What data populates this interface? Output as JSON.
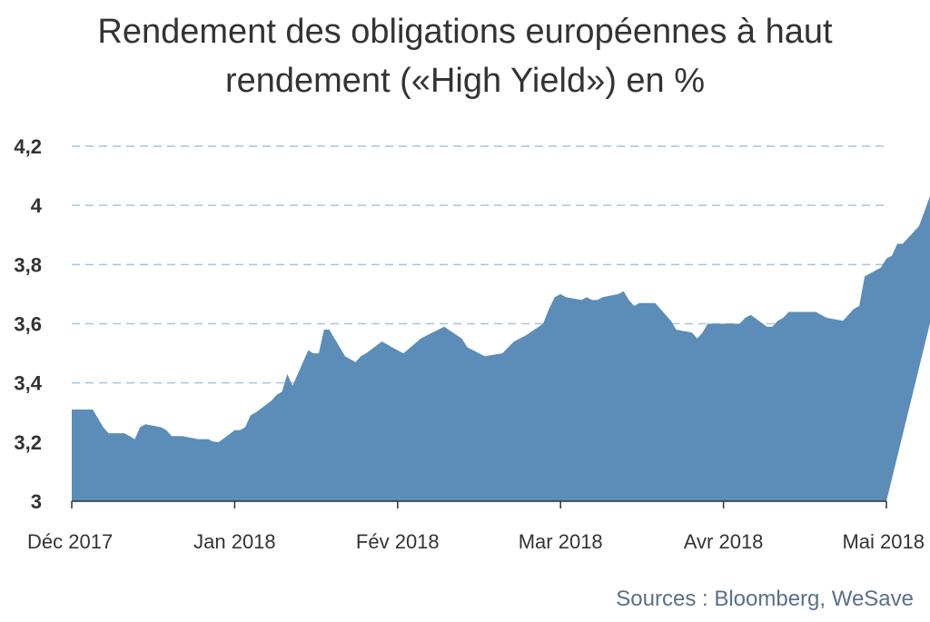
{
  "chart_data": {
    "type": "area",
    "title_line1": "Rendement des obligations européennes à haut",
    "title_line2": "rendement («High Yield») en %",
    "ylim": [
      3,
      4.2
    ],
    "y_ticks": [
      {
        "value": 3,
        "label": "3"
      },
      {
        "value": 3.2,
        "label": "3,2"
      },
      {
        "value": 3.4,
        "label": "3,4"
      },
      {
        "value": 3.6,
        "label": "3,6"
      },
      {
        "value": 3.8,
        "label": "3,8"
      },
      {
        "value": 4,
        "label": "4"
      },
      {
        "value": 4.2,
        "label": "4,2"
      }
    ],
    "x_ticks": [
      {
        "date": "2017-12-01",
        "label": "Déc 2017"
      },
      {
        "date": "2018-01-01",
        "label": "Jan 2018"
      },
      {
        "date": "2018-02-01",
        "label": "Fév 2018"
      },
      {
        "date": "2018-03-01",
        "label": "Mar 2018"
      },
      {
        "date": "2018-04-01",
        "label": "Avr 2018"
      },
      {
        "date": "2018-05-01",
        "label": "Mai 2018"
      }
    ],
    "grid": "horizontal dashed",
    "fill_color": "#5b8db8",
    "grid_color": "#a9c4dc",
    "points": [
      [
        "2017-12-01",
        3.31
      ],
      [
        "2017-12-04",
        3.31
      ],
      [
        "2017-12-05",
        3.31
      ],
      [
        "2017-12-06",
        3.28
      ],
      [
        "2017-12-07",
        3.25
      ],
      [
        "2017-12-08",
        3.23
      ],
      [
        "2017-12-11",
        3.23
      ],
      [
        "2017-12-12",
        3.22
      ],
      [
        "2017-12-13",
        3.21
      ],
      [
        "2017-12-14",
        3.25
      ],
      [
        "2017-12-15",
        3.26
      ],
      [
        "2017-12-18",
        3.25
      ],
      [
        "2017-12-19",
        3.24
      ],
      [
        "2017-12-20",
        3.22
      ],
      [
        "2017-12-21",
        3.22
      ],
      [
        "2017-12-22",
        3.22
      ],
      [
        "2017-12-25",
        3.21
      ],
      [
        "2017-12-26",
        3.21
      ],
      [
        "2017-12-27",
        3.21
      ],
      [
        "2017-12-28",
        3.2
      ],
      [
        "2017-12-29",
        3.2
      ],
      [
        "2018-01-01",
        3.24
      ],
      [
        "2018-01-02",
        3.24
      ],
      [
        "2018-01-03",
        3.25
      ],
      [
        "2018-01-04",
        3.29
      ],
      [
        "2018-01-05",
        3.3
      ],
      [
        "2018-01-08",
        3.34
      ],
      [
        "2018-01-09",
        3.36
      ],
      [
        "2018-01-10",
        3.37
      ],
      [
        "2018-01-11",
        3.43
      ],
      [
        "2018-01-12",
        3.39
      ],
      [
        "2018-01-15",
        3.51
      ],
      [
        "2018-01-16",
        3.5
      ],
      [
        "2018-01-17",
        3.5
      ],
      [
        "2018-01-18",
        3.58
      ],
      [
        "2018-01-19",
        3.58
      ],
      [
        "2018-01-22",
        3.49
      ],
      [
        "2018-01-23",
        3.48
      ],
      [
        "2018-01-24",
        3.47
      ],
      [
        "2018-01-25",
        3.49
      ],
      [
        "2018-01-26",
        3.5
      ],
      [
        "2018-01-29",
        3.54
      ],
      [
        "2018-01-30",
        3.53
      ],
      [
        "2018-01-31",
        3.52
      ],
      [
        "2018-02-01",
        3.51
      ],
      [
        "2018-02-02",
        3.5
      ],
      [
        "2018-02-05",
        3.55
      ],
      [
        "2018-02-06",
        3.56
      ],
      [
        "2018-02-07",
        3.57
      ],
      [
        "2018-02-08",
        3.58
      ],
      [
        "2018-02-09",
        3.59
      ],
      [
        "2018-02-12",
        3.55
      ],
      [
        "2018-02-13",
        3.52
      ],
      [
        "2018-02-14",
        3.51
      ],
      [
        "2018-02-15",
        3.5
      ],
      [
        "2018-02-16",
        3.49
      ],
      [
        "2018-02-19",
        3.5
      ],
      [
        "2018-02-20",
        3.52
      ],
      [
        "2018-02-21",
        3.54
      ],
      [
        "2018-02-22",
        3.55
      ],
      [
        "2018-02-23",
        3.56
      ],
      [
        "2018-02-26",
        3.6
      ],
      [
        "2018-02-27",
        3.65
      ],
      [
        "2018-02-28",
        3.69
      ],
      [
        "2018-03-01",
        3.7
      ],
      [
        "2018-03-02",
        3.69
      ],
      [
        "2018-03-05",
        3.68
      ],
      [
        "2018-03-06",
        3.69
      ],
      [
        "2018-03-07",
        3.68
      ],
      [
        "2018-03-08",
        3.68
      ],
      [
        "2018-03-09",
        3.69
      ],
      [
        "2018-03-12",
        3.7
      ],
      [
        "2018-03-13",
        3.71
      ],
      [
        "2018-03-14",
        3.68
      ],
      [
        "2018-03-15",
        3.66
      ],
      [
        "2018-03-16",
        3.67
      ],
      [
        "2018-03-19",
        3.67
      ],
      [
        "2018-03-20",
        3.65
      ],
      [
        "2018-03-21",
        3.63
      ],
      [
        "2018-03-22",
        3.61
      ],
      [
        "2018-03-23",
        3.58
      ],
      [
        "2018-03-26",
        3.57
      ],
      [
        "2018-03-27",
        3.55
      ],
      [
        "2018-03-28",
        3.57
      ],
      [
        "2018-03-29",
        3.6
      ],
      [
        "2018-03-30",
        3.6
      ],
      [
        "2018-04-02",
        3.6
      ],
      [
        "2018-04-03",
        3.6
      ],
      [
        "2018-04-04",
        3.6
      ],
      [
        "2018-04-05",
        3.62
      ],
      [
        "2018-04-06",
        3.63
      ],
      [
        "2018-04-09",
        3.59
      ],
      [
        "2018-04-10",
        3.59
      ],
      [
        "2018-04-11",
        3.61
      ],
      [
        "2018-04-12",
        3.62
      ],
      [
        "2018-04-13",
        3.64
      ],
      [
        "2018-04-16",
        3.64
      ],
      [
        "2018-04-17",
        3.64
      ],
      [
        "2018-04-18",
        3.64
      ],
      [
        "2018-04-19",
        3.63
      ],
      [
        "2018-04-20",
        3.62
      ],
      [
        "2018-04-23",
        3.61
      ],
      [
        "2018-04-24",
        3.63
      ],
      [
        "2018-04-25",
        3.65
      ],
      [
        "2018-04-26",
        3.66
      ],
      [
        "2018-04-27",
        3.76
      ],
      [
        "2018-04-30",
        3.79
      ],
      [
        "2018-05-01",
        3.82
      ],
      [
        "2018-05-02",
        3.83
      ],
      [
        "2018-05-03",
        3.87
      ],
      [
        "2018-05-04",
        3.87
      ],
      [
        "2018-05-07",
        3.93
      ],
      [
        "2018-05-08",
        3.98
      ],
      [
        "2018-05-09",
        4.03
      ],
      [
        "2018-05-10",
        4.08
      ],
      [
        "2018-05-11",
        4.12
      ],
      [
        "2018-05-14",
        4.12
      ],
      [
        "2018-05-15",
        4.05
      ]
    ]
  },
  "footer": {
    "source": "Sources : Bloomberg, WeSave"
  }
}
